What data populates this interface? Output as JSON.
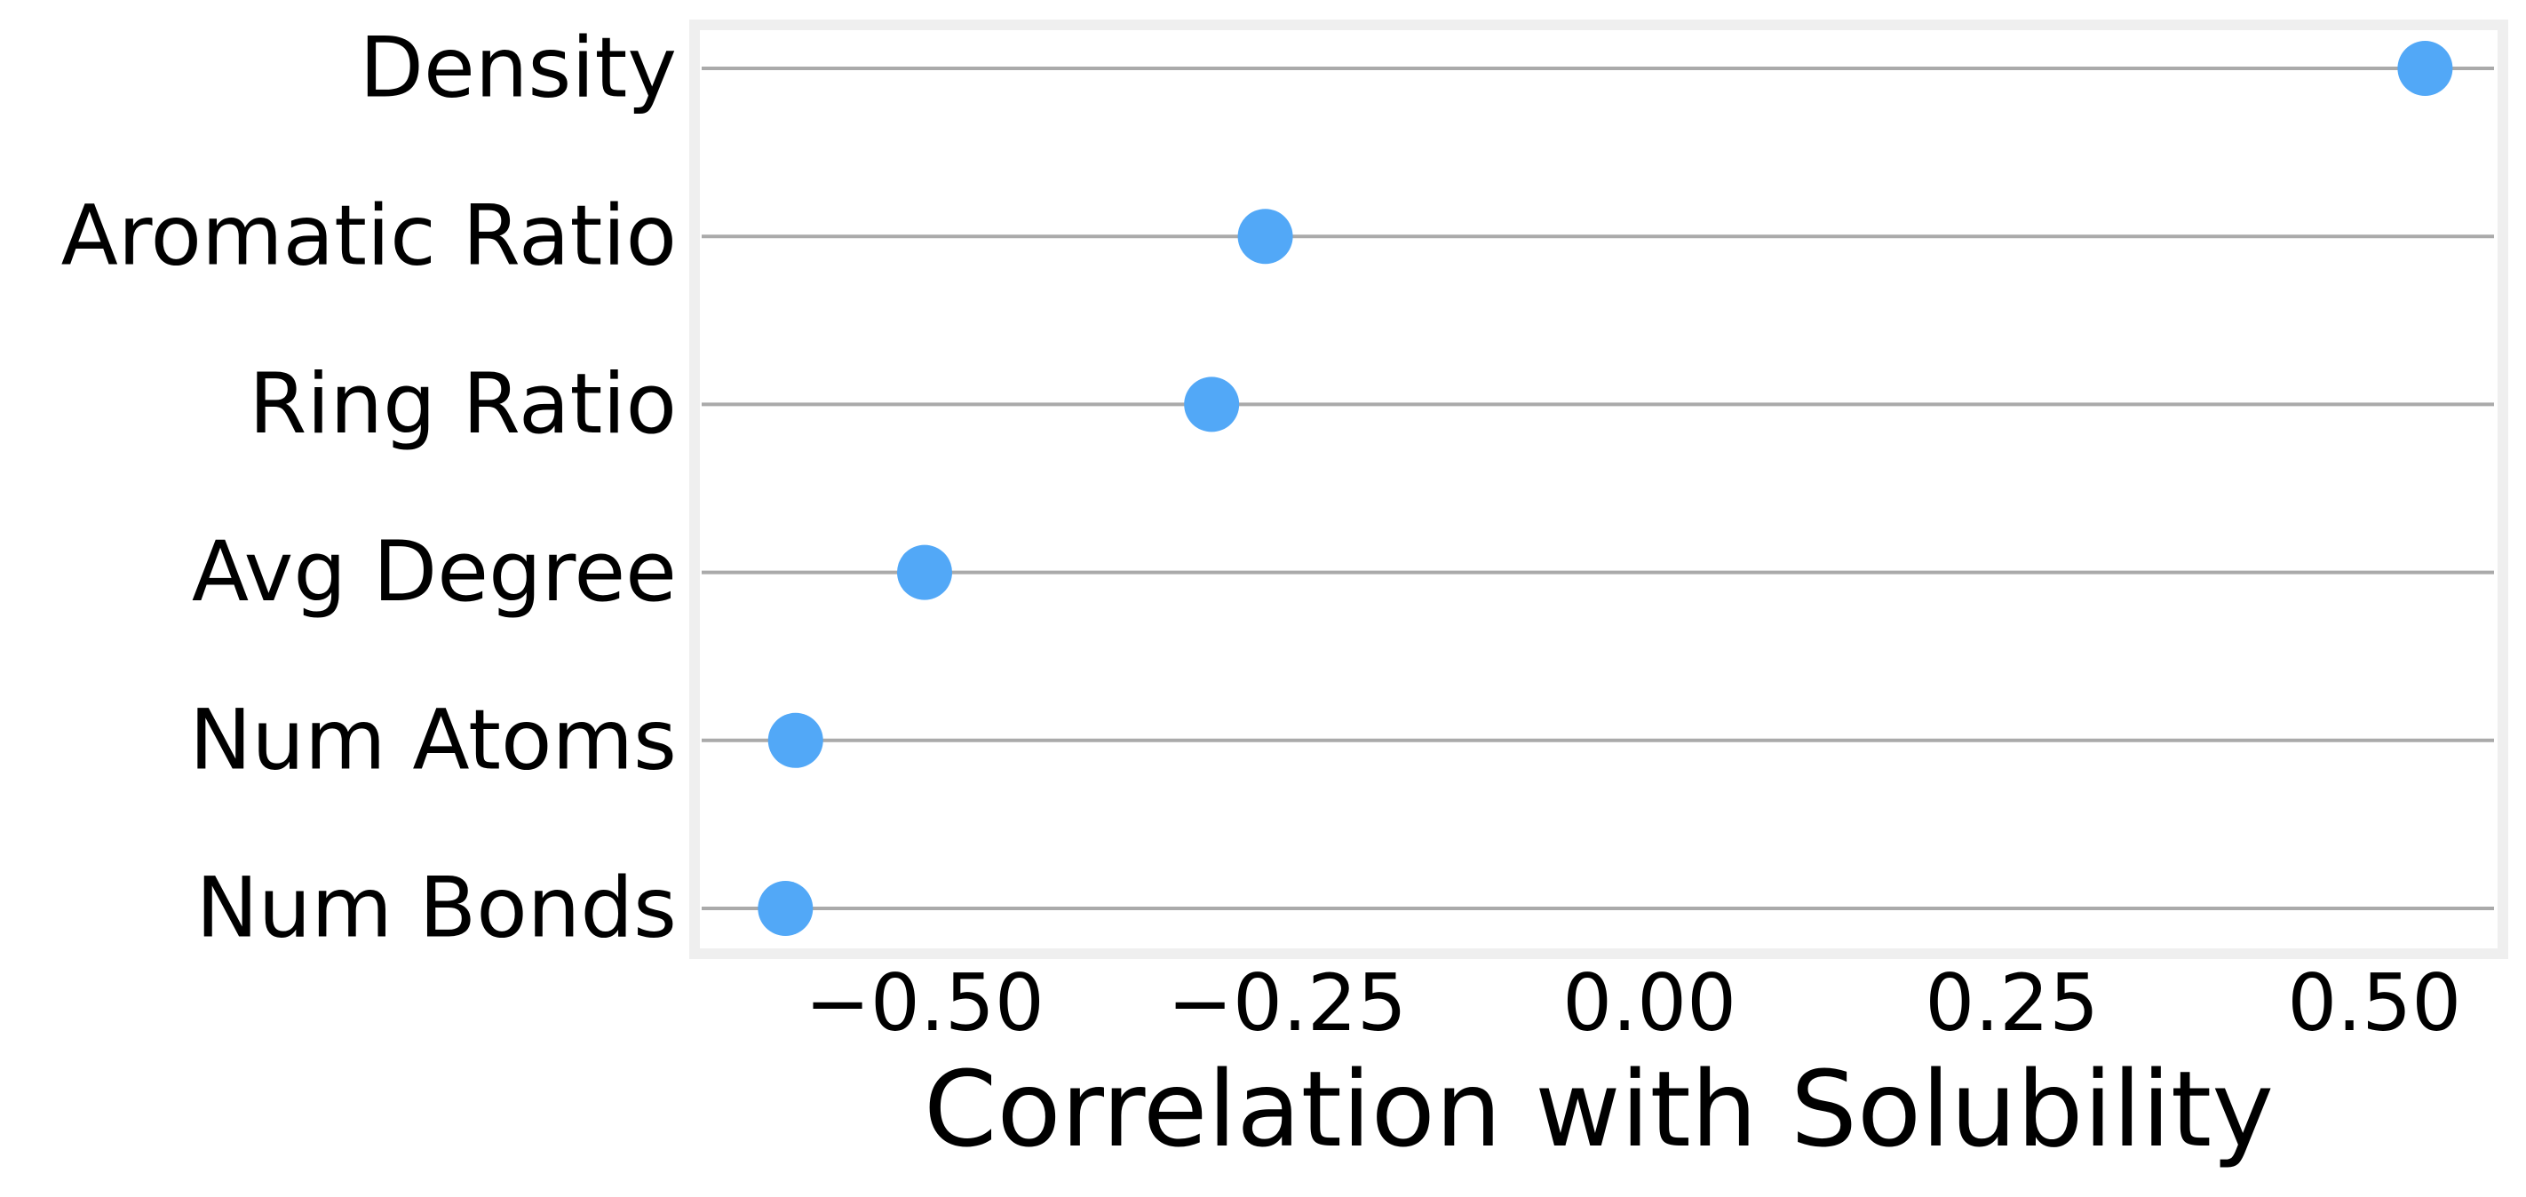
{
  "chart_data": {
    "type": "scatter",
    "title": "",
    "xlabel": "Correlation with Solubility",
    "ylabel": "",
    "categories": [
      "Density",
      "Aromatic Ratio",
      "Ring Ratio",
      "Avg Degree",
      "Num Atoms",
      "Num Bonds"
    ],
    "series": [
      {
        "name": "Correlation",
        "values": [
          0.535,
          -0.265,
          -0.302,
          -0.5,
          -0.589,
          -0.596
        ]
      }
    ],
    "x_ticks": [
      -0.5,
      -0.25,
      0.0,
      0.25,
      0.5
    ],
    "x_tick_labels": [
      "−0.50",
      "−0.25",
      "0.00",
      "0.25",
      "0.50"
    ],
    "xlim": [
      -0.655,
      0.585
    ],
    "grid": "horizontal",
    "legend": "none",
    "colors": {
      "marker": "#52a8f7",
      "gridline": "#aaaaaa",
      "frame": "#efefef",
      "text": "#000000",
      "background": "#ffffff"
    }
  }
}
